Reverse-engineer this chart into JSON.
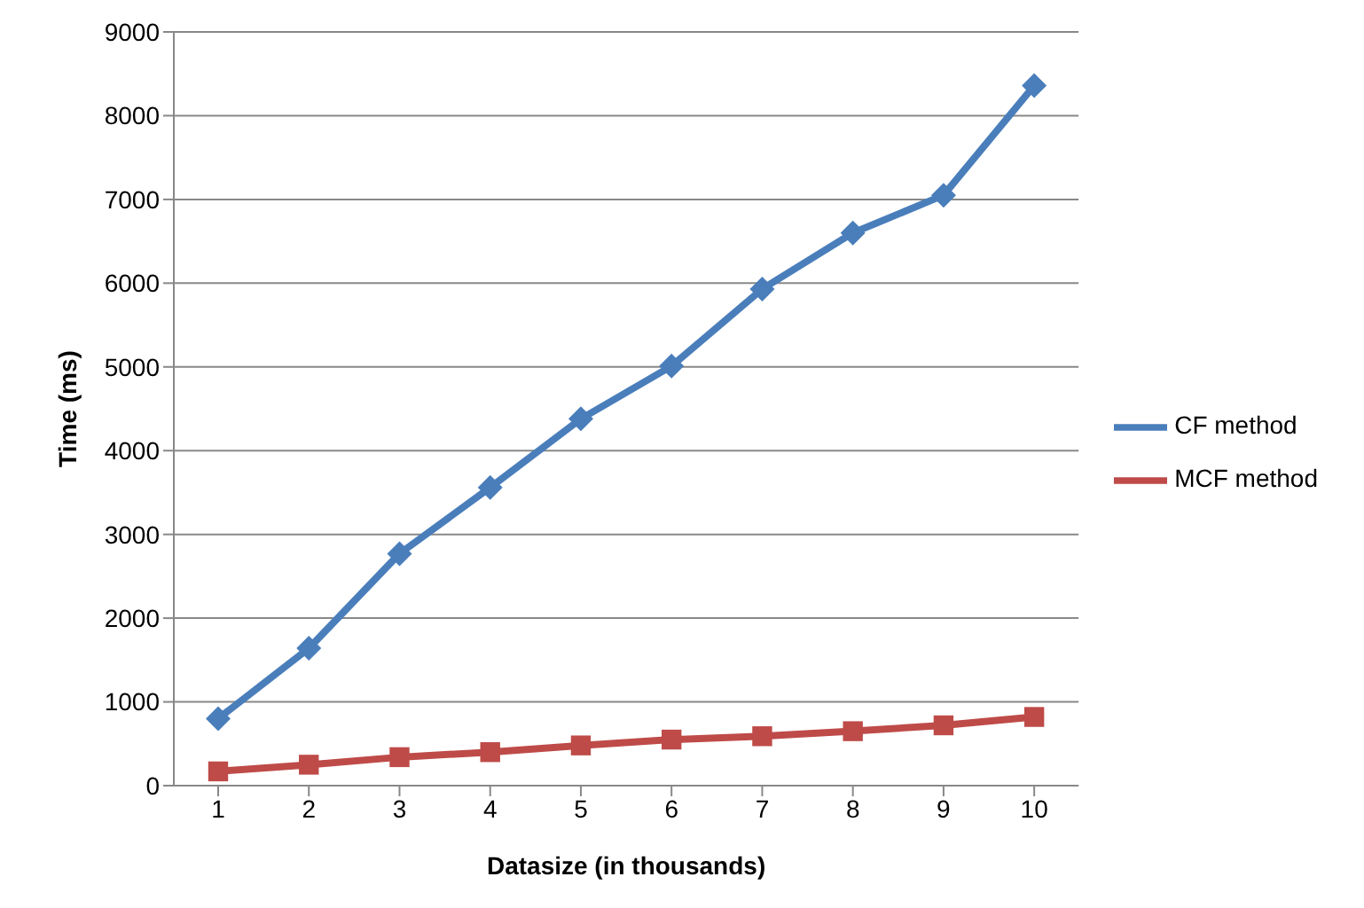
{
  "chart_data": {
    "type": "line",
    "xlabel": "Datasize (in thousands)",
    "ylabel": "Time (ms)",
    "categories": [
      "1",
      "2",
      "3",
      "4",
      "5",
      "6",
      "7",
      "8",
      "9",
      "10"
    ],
    "series": [
      {
        "name": "CF method",
        "color": "#4a7ebb",
        "marker": "diamond",
        "values": [
          800,
          1640,
          2770,
          3560,
          4380,
          5010,
          5930,
          6600,
          7050,
          8360
        ]
      },
      {
        "name": "MCF method",
        "color": "#be4b48",
        "marker": "square",
        "values": [
          170,
          250,
          340,
          400,
          480,
          550,
          590,
          650,
          720,
          820
        ]
      }
    ],
    "ylim": [
      0,
      9000
    ],
    "yticks": [
      0,
      1000,
      2000,
      3000,
      4000,
      5000,
      6000,
      7000,
      8000,
      9000
    ],
    "grid": "y",
    "legend": "right"
  }
}
